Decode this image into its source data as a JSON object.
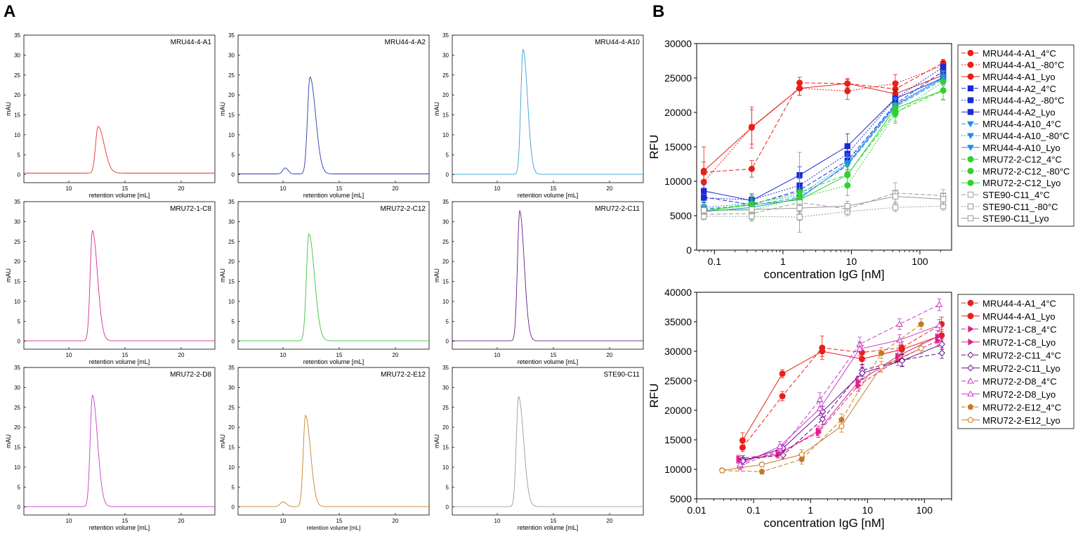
{
  "panel_labels": {
    "a": "A",
    "b": "B"
  },
  "chart_data": [
    {
      "type": "line",
      "id": "sec-1",
      "title": "MRU44-4-A1",
      "color": "#e8312a",
      "xlabel": "retention volume [mL]",
      "ylabel": "mAU",
      "xlim": [
        6,
        23
      ],
      "ylim": [
        -2,
        35
      ],
      "xticks": [
        10,
        15,
        20
      ],
      "yticks": [
        0,
        5,
        10,
        15,
        20,
        25,
        30,
        35
      ],
      "baseline": 0.4,
      "peaks": [
        {
          "x": 12.6,
          "h": 11.7,
          "wl": 0.22,
          "wr": 0.55
        }
      ]
    },
    {
      "type": "line",
      "id": "sec-2",
      "title": "MRU44-4-A2",
      "color": "#2a3aa8",
      "xlabel": "retention volume [mL]",
      "ylabel": "mAU",
      "xlim": [
        6,
        23
      ],
      "ylim": [
        -2,
        35
      ],
      "xticks": [
        10,
        15,
        20
      ],
      "yticks": [
        0,
        5,
        10,
        15,
        20,
        25,
        30,
        35
      ],
      "baseline": 0.2,
      "peaks": [
        {
          "x": 12.4,
          "h": 24.3,
          "wl": 0.22,
          "wr": 0.5
        },
        {
          "x": 10.2,
          "h": 1.5,
          "wl": 0.22,
          "wr": 0.25
        }
      ]
    },
    {
      "type": "line",
      "id": "sec-3",
      "title": "MRU44-4-A10",
      "color": "#3a9ed6",
      "xlabel": "retention volume [mL]",
      "ylabel": "mAU",
      "xlim": [
        6,
        23
      ],
      "ylim": [
        -2,
        35
      ],
      "xticks": [
        10,
        15,
        20
      ],
      "yticks": [
        0,
        5,
        10,
        15,
        20,
        25,
        30,
        35
      ],
      "baseline": 0.1,
      "peaks": [
        {
          "x": 12.3,
          "h": 31.3,
          "wl": 0.2,
          "wr": 0.4
        }
      ]
    },
    {
      "type": "line",
      "id": "sec-4",
      "title": "MRU72-1-C8",
      "color": "#d42a8f",
      "xlabel": "retention volume [mL]",
      "ylabel": "mAU",
      "xlim": [
        6,
        23
      ],
      "ylim": [
        -2,
        35
      ],
      "xticks": [
        10,
        15,
        20
      ],
      "yticks": [
        0,
        5,
        10,
        15,
        20,
        25,
        30,
        35
      ],
      "baseline": 0.1,
      "peaks": [
        {
          "x": 12.1,
          "h": 27.6,
          "wl": 0.2,
          "wr": 0.45
        }
      ]
    },
    {
      "type": "line",
      "id": "sec-5",
      "title": "MRU72-2-C12",
      "color": "#3ec23e",
      "xlabel": "retention volume [mL]",
      "ylabel": "mAU",
      "xlim": [
        6,
        23
      ],
      "ylim": [
        -2,
        35
      ],
      "xticks": [
        10,
        15,
        20
      ],
      "yticks": [
        0,
        5,
        10,
        15,
        20,
        25,
        30,
        35
      ],
      "baseline": 0.1,
      "peaks": [
        {
          "x": 12.3,
          "h": 26.8,
          "wl": 0.22,
          "wr": 0.5
        }
      ]
    },
    {
      "type": "line",
      "id": "sec-6",
      "title": "MRU72-2-C11",
      "color": "#6a1a8c",
      "xlabel": "retention volume [mL]",
      "ylabel": "mAU",
      "xlim": [
        6,
        23
      ],
      "ylim": [
        -2,
        35
      ],
      "xticks": [
        10,
        15,
        20
      ],
      "yticks": [
        0,
        5,
        10,
        15,
        20,
        25,
        30,
        35
      ],
      "baseline": 0.1,
      "peaks": [
        {
          "x": 12.0,
          "h": 32.6,
          "wl": 0.2,
          "wr": 0.4
        }
      ]
    },
    {
      "type": "line",
      "id": "sec-7",
      "title": "MRU72-2-D8",
      "color": "#c83cc8",
      "xlabel": "retention volume [mL]",
      "ylabel": "mAU",
      "xlim": [
        6,
        23
      ],
      "ylim": [
        -2,
        35
      ],
      "xticks": [
        10,
        15,
        20
      ],
      "yticks": [
        0,
        5,
        10,
        15,
        20,
        25,
        30,
        35
      ],
      "baseline": 0.1,
      "peaks": [
        {
          "x": 12.1,
          "h": 27.9,
          "wl": 0.2,
          "wr": 0.45
        }
      ]
    },
    {
      "type": "line",
      "id": "sec-8",
      "title": "MRU72-2-E12",
      "color": "#c8822a",
      "xlabel": "retention volume [mL]",
      "ylabel": "mAU",
      "xlim": [
        6,
        23
      ],
      "ylim": [
        -2,
        35
      ],
      "xticks": [
        10,
        15,
        20
      ],
      "yticks": [
        0,
        5,
        10,
        15,
        20,
        25,
        30,
        35
      ],
      "baseline": 0.1,
      "peaks": [
        {
          "x": 12.0,
          "h": 22.9,
          "wl": 0.2,
          "wr": 0.45
        },
        {
          "x": 10.0,
          "h": 1.2,
          "wl": 0.25,
          "wr": 0.3
        }
      ]
    },
    {
      "type": "line",
      "id": "sec-9",
      "title": "STE90-C11",
      "color": "#9a9a9a",
      "xlabel": "retention volume [mL]",
      "ylabel": "mAU",
      "xlim": [
        6,
        23
      ],
      "ylim": [
        -2,
        35
      ],
      "xticks": [
        10,
        15,
        20
      ],
      "yticks": [
        0,
        5,
        10,
        15,
        20,
        25,
        30,
        35
      ],
      "baseline": 0.1,
      "peaks": [
        {
          "x": 11.9,
          "h": 27.6,
          "wl": 0.2,
          "wr": 0.45
        }
      ]
    },
    {
      "type": "line",
      "id": "binding-1",
      "xscale": "log",
      "xlabel": "concentration IgG [nM]",
      "ylabel": "RFU",
      "xlim": [
        0.055,
        290
      ],
      "ylim": [
        0,
        30000
      ],
      "xticks": [
        {
          "v": 0.1,
          "l": "0.1"
        },
        {
          "v": 1,
          "l": "1"
        },
        {
          "v": 10,
          "l": "10"
        },
        {
          "v": 100,
          "l": "100"
        }
      ],
      "yticks": [
        0,
        5000,
        10000,
        15000,
        20000,
        25000,
        30000
      ],
      "x": [
        0.07,
        0.35,
        1.75,
        8.75,
        43.75,
        218.75
      ],
      "series": [
        {
          "name": "MRU44-4-A1_4°C",
          "color": "#e8201a",
          "dash": "6,3",
          "marker": "circle",
          "open": false,
          "values": [
            11300,
            11800,
            24300,
            24200,
            23400,
            27200
          ],
          "err": [
            1500,
            1200,
            800,
            600,
            800,
            500
          ]
        },
        {
          "name": "MRU44-4-A1_-80°C",
          "color": "#e8201a",
          "dash": "2,2",
          "marker": "circle",
          "open": false,
          "values": [
            9900,
            17900,
            23500,
            23100,
            24200,
            26800
          ],
          "err": [
            1200,
            2500,
            1000,
            1200,
            1300,
            600
          ]
        },
        {
          "name": "MRU44-4-A1_Lyo",
          "color": "#e8201a",
          "dash": "",
          "marker": "circle",
          "open": false,
          "values": [
            11500,
            17800,
            23500,
            24200,
            22700,
            25400
          ],
          "err": [
            3500,
            3000,
            1000,
            700,
            1000,
            700
          ]
        },
        {
          "name": "MRU44-4-A2_4°C",
          "color": "#1a2ad4",
          "dash": "6,3",
          "marker": "square",
          "open": false,
          "values": [
            7700,
            6600,
            8700,
            13000,
            21200,
            26000
          ],
          "err": [
            800,
            800,
            900,
            1300,
            1200,
            900
          ]
        },
        {
          "name": "MRU44-4-A2_-80°C",
          "color": "#1a2ad4",
          "dash": "2,2",
          "marker": "square",
          "open": false,
          "values": [
            7600,
            7300,
            9400,
            14000,
            22000,
            26600
          ],
          "err": [
            600,
            900,
            1000,
            1400,
            1000,
            800
          ]
        },
        {
          "name": "MRU44-4-A2_Lyo",
          "color": "#1a2ad4",
          "dash": "",
          "marker": "square",
          "open": false,
          "values": [
            8600,
            7200,
            10900,
            15100,
            22000,
            25000
          ],
          "err": [
            900,
            800,
            1200,
            1800,
            1300,
            900
          ]
        },
        {
          "name": "MRU44-4-A10_4°C",
          "color": "#1e8ae8",
          "dash": "6,3",
          "marker": "tri-down",
          "open": false,
          "values": [
            6000,
            6500,
            7700,
            12300,
            20800,
            24800
          ],
          "err": [
            700,
            700,
            800,
            1200,
            1100,
            900
          ]
        },
        {
          "name": "MRU44-4-A10_-80°C",
          "color": "#1e8ae8",
          "dash": "2,2",
          "marker": "tri-down",
          "open": false,
          "values": [
            6200,
            6800,
            8000,
            12700,
            21100,
            25200
          ],
          "err": [
            700,
            700,
            800,
            1300,
            1100,
            900
          ]
        },
        {
          "name": "MRU44-4-A10_Lyo",
          "color": "#1e8ae8",
          "dash": "",
          "marker": "tri-down",
          "open": false,
          "values": [
            5600,
            6200,
            7500,
            12500,
            21000,
            25000
          ],
          "err": [
            700,
            700,
            800,
            1300,
            1100,
            900
          ]
        },
        {
          "name": "MRU72-2-C12_4°C",
          "color": "#2ed12e",
          "dash": "6,3",
          "marker": "circle",
          "open": false,
          "values": [
            5800,
            6700,
            8400,
            11000,
            20000,
            23200
          ],
          "err": [
            800,
            1500,
            5800,
            1500,
            1300,
            1400
          ]
        },
        {
          "name": "MRU72-2-C12_-80°C",
          "color": "#2ed12e",
          "dash": "2,2",
          "marker": "circle",
          "open": false,
          "values": [
            5700,
            5800,
            7600,
            9400,
            19800,
            24500
          ],
          "err": [
            900,
            1600,
            1400,
            1500,
            1400,
            1500
          ]
        },
        {
          "name": "MRU72-2-C12_Lyo",
          "color": "#2ed12e",
          "dash": "",
          "marker": "circle",
          "open": false,
          "values": [
            5700,
            6600,
            7300,
            10900,
            20600,
            23200
          ],
          "err": [
            800,
            1200,
            1200,
            1300,
            1300,
            1300
          ]
        },
        {
          "name": "STE90-C11_4°C",
          "color": "#999999",
          "dash": "6,3",
          "marker": "square",
          "open": true,
          "values": [
            5200,
            5300,
            6900,
            6000,
            8300,
            7900
          ],
          "err": [
            500,
            600,
            1300,
            800,
            1500,
            900
          ]
        },
        {
          "name": "STE90-C11_-80°C",
          "color": "#999999",
          "dash": "2,2",
          "marker": "square",
          "open": true,
          "values": [
            4900,
            4900,
            4800,
            5600,
            6200,
            6400
          ],
          "err": [
            500,
            500,
            500,
            600,
            600,
            600
          ]
        },
        {
          "name": "STE90-C11_Lyo",
          "color": "#999999",
          "dash": "",
          "marker": "square",
          "open": true,
          "values": [
            5800,
            5900,
            6100,
            6400,
            7800,
            7400
          ],
          "err": [
            600,
            600,
            600,
            700,
            800,
            800
          ]
        }
      ]
    },
    {
      "type": "line",
      "id": "binding-2",
      "xscale": "log",
      "xlabel": "concentration IgG [nM]",
      "ylabel": "RFU",
      "xlim": [
        0.01,
        300
      ],
      "ylim": [
        5000,
        40000
      ],
      "xticks": [
        {
          "v": 0.01,
          "l": "0.01"
        },
        {
          "v": 0.1,
          "l": "0.1"
        },
        {
          "v": 1,
          "l": "1"
        },
        {
          "v": 10,
          "l": "10"
        },
        {
          "v": 100,
          "l": "100"
        }
      ],
      "yticks": [
        5000,
        10000,
        15000,
        20000,
        25000,
        30000,
        35000,
        40000
      ],
      "series": [
        {
          "name": "MRU44-4-A1_4°C",
          "color": "#e8201a",
          "dash": "6,3",
          "marker": "circle",
          "open": false,
          "x": [
            0.064,
            0.32,
            1.6,
            8,
            40,
            200
          ],
          "values": [
            13700,
            22400,
            30600,
            29800,
            30600,
            34600
          ],
          "err": [
            700,
            800,
            2000,
            1200,
            1000,
            1200
          ]
        },
        {
          "name": "MRU44-4-A1_Lyo",
          "color": "#e8201a",
          "dash": "",
          "marker": "circle",
          "open": false,
          "x": [
            0.064,
            0.32,
            1.6,
            8,
            40,
            200
          ],
          "values": [
            14900,
            26200,
            30000,
            28700,
            30300,
            32700
          ],
          "err": [
            1300,
            700,
            900,
            1000,
            900,
            1000
          ]
        },
        {
          "name": "MRU72-1-C8_4°C",
          "color": "#e0208a",
          "dash": "6,3",
          "marker": "tri-right",
          "open": false,
          "x": [
            0.055,
            0.27,
            1.37,
            6.85,
            34.2,
            171
          ],
          "values": [
            11800,
            12700,
            16200,
            24200,
            28600,
            31800
          ],
          "err": [
            600,
            600,
            800,
            1000,
            1000,
            1000
          ]
        },
        {
          "name": "MRU72-1-C8_Lyo",
          "color": "#e0208a",
          "dash": "",
          "marker": "tri-right",
          "open": false,
          "x": [
            0.055,
            0.27,
            1.37,
            6.85,
            34.2,
            171
          ],
          "values": [
            11600,
            12500,
            16500,
            24800,
            29200,
            32500
          ],
          "err": [
            600,
            600,
            800,
            1000,
            1000,
            1000
          ]
        },
        {
          "name": "MRU72-2-C11_4°C",
          "color": "#6a0a8c",
          "dash": "6,3",
          "marker": "diamond",
          "open": true,
          "x": [
            0.065,
            0.33,
            1.63,
            8.1,
            40.5,
            203
          ],
          "values": [
            11700,
            12400,
            18500,
            26800,
            28500,
            29700
          ],
          "err": [
            600,
            600,
            900,
            1000,
            1000,
            900
          ]
        },
        {
          "name": "MRU72-2-C11_Lyo",
          "color": "#6a0a8c",
          "dash": "",
          "marker": "diamond",
          "open": true,
          "x": [
            0.065,
            0.33,
            1.63,
            8.1,
            40.5,
            203
          ],
          "values": [
            11400,
            13600,
            19800,
            26300,
            28400,
            31200
          ],
          "err": [
            600,
            600,
            900,
            1000,
            1000,
            900
          ]
        },
        {
          "name": "MRU72-2-D8_4°C",
          "color": "#c838c8",
          "dash": "6,3",
          "marker": "tri-up",
          "open": true,
          "x": [
            0.058,
            0.29,
            1.46,
            7.3,
            36.5,
            182
          ],
          "values": [
            10600,
            13300,
            21800,
            31200,
            34600,
            37900
          ],
          "err": [
            700,
            800,
            1200,
            1200,
            900,
            1000
          ]
        },
        {
          "name": "MRU72-2-D8_Lyo",
          "color": "#c838c8",
          "dash": "",
          "marker": "tri-up",
          "open": true,
          "x": [
            0.058,
            0.29,
            1.46,
            7.3,
            36.5,
            182
          ],
          "values": [
            10800,
            13900,
            20300,
            30400,
            31900,
            34400
          ],
          "err": [
            700,
            800,
            1200,
            1200,
            900,
            1000
          ]
        },
        {
          "name": "MRU72-2-E12_4°C",
          "color": "#c87820",
          "dash": "6,3",
          "marker": "pentagon",
          "open": false,
          "x": [
            0.028,
            0.14,
            0.7,
            3.5,
            17.5,
            87.5
          ],
          "values": [
            9800,
            9600,
            11700,
            18400,
            29700,
            34600
          ],
          "err": [
            400,
            400,
            800,
            1000,
            900,
            900
          ]
        },
        {
          "name": "MRU72-2-E12_Lyo",
          "color": "#c87820",
          "dash": "",
          "marker": "pentagon",
          "open": true,
          "x": [
            0.028,
            0.14,
            0.7,
            3.5,
            17.5,
            87.5
          ],
          "values": [
            9800,
            10800,
            12500,
            17300,
            27400,
            30500
          ],
          "err": [
            400,
            400,
            800,
            1000,
            900,
            900
          ]
        }
      ]
    }
  ]
}
